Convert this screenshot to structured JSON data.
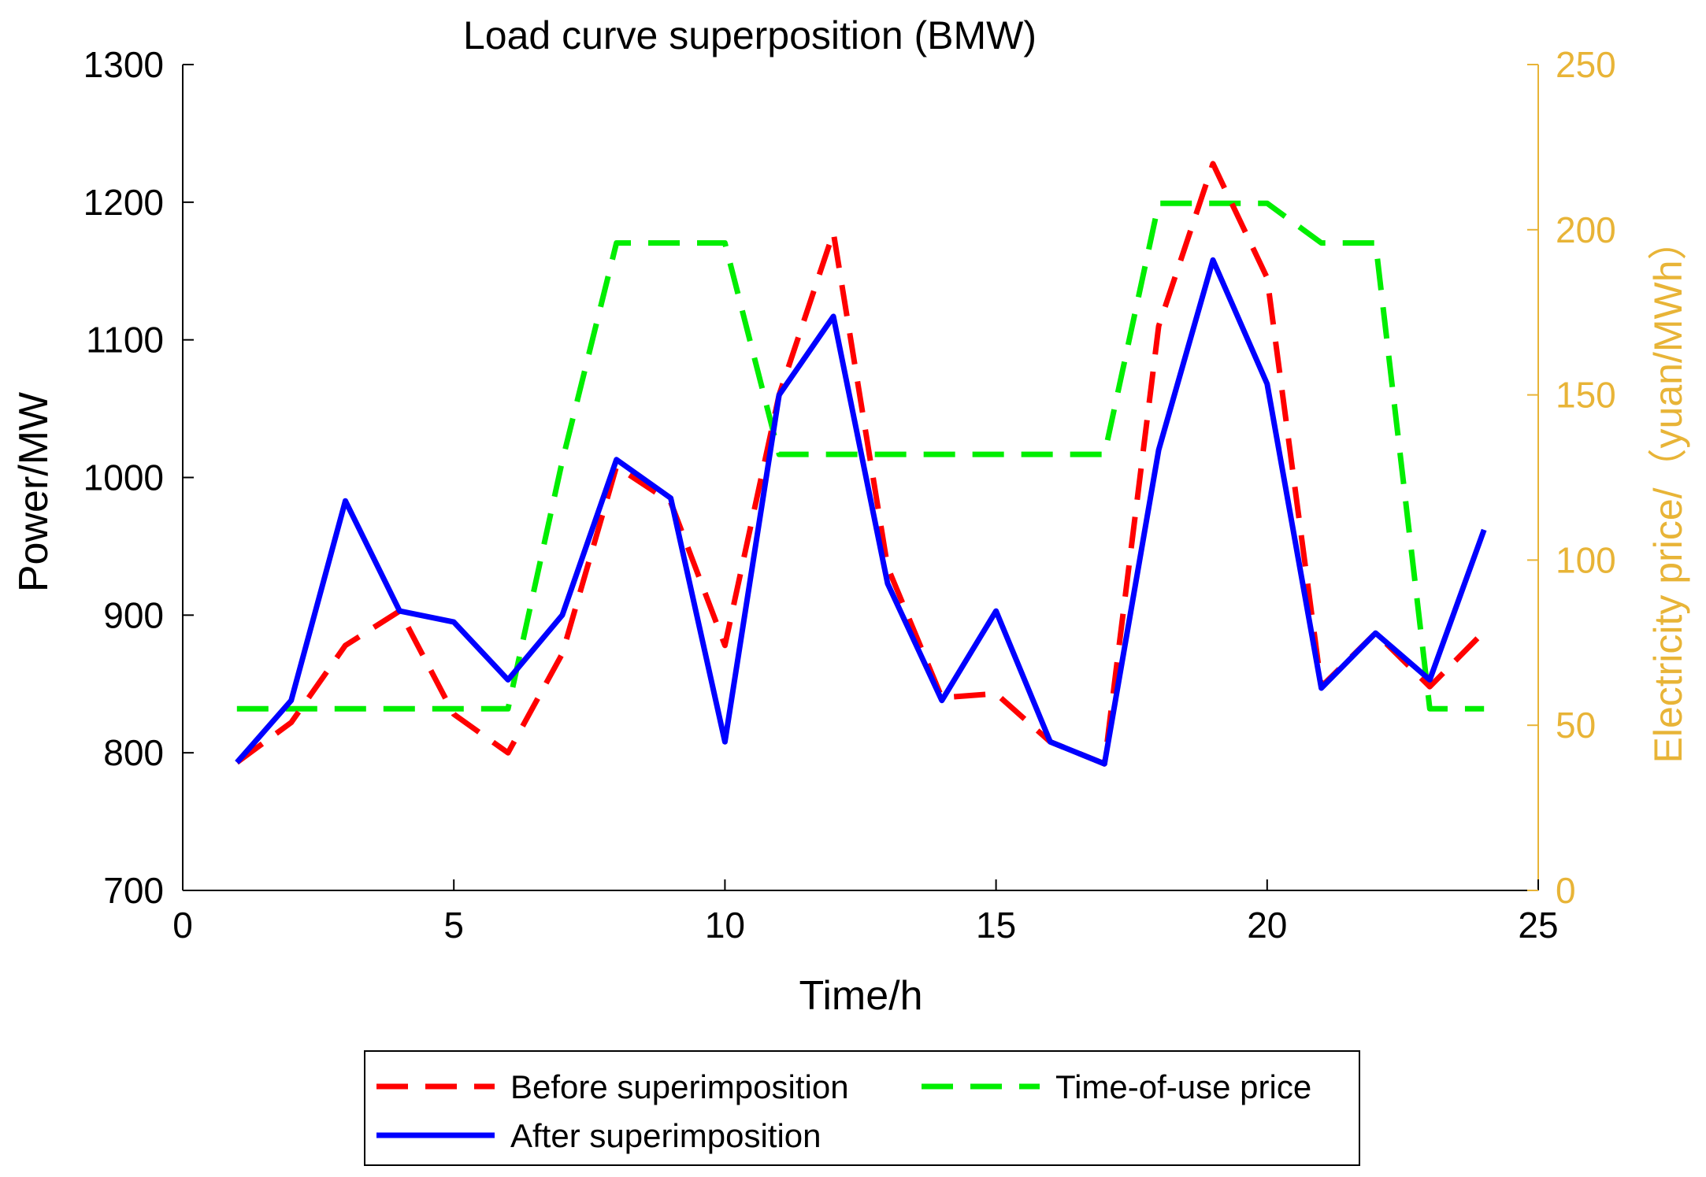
{
  "chart_data": {
    "type": "line",
    "title": "Load curve superposition (BMW)",
    "xlabel": "Time/h",
    "ylabel": "Power/MW",
    "y2label": "Electricity price/（yuan/MWh）",
    "xlim": [
      0,
      25
    ],
    "ylim": [
      700,
      1300
    ],
    "y2lim": [
      0,
      250
    ],
    "xticks": [
      0,
      5,
      10,
      15,
      20,
      25
    ],
    "yticks": [
      700,
      800,
      900,
      1000,
      1100,
      1200,
      1300
    ],
    "y2ticks": [
      0,
      50,
      100,
      150,
      200,
      250
    ],
    "grid": false,
    "legend_position": "bottom",
    "x": [
      1,
      2,
      3,
      4,
      5,
      6,
      7,
      8,
      9,
      10,
      11,
      12,
      13,
      14,
      15,
      16,
      17,
      18,
      19,
      20,
      21,
      22,
      23,
      24
    ],
    "series": [
      {
        "name": "Before superimposition",
        "axis": "left",
        "style": "dashed",
        "color": "#ff0000",
        "values": [
          793,
          822,
          878,
          903,
          828,
          800,
          872,
          1008,
          982,
          878,
          1060,
          1178,
          935,
          840,
          843,
          808,
          792,
          1110,
          1228,
          1145,
          848,
          887,
          848,
          888
        ]
      },
      {
        "name": "After superimposition",
        "axis": "left",
        "style": "solid",
        "color": "#0000ff",
        "values": [
          793,
          838,
          983,
          903,
          895,
          853,
          900,
          1013,
          985,
          808,
          1060,
          1117,
          923,
          838,
          903,
          808,
          792,
          1020,
          1158,
          1068,
          847,
          887,
          853,
          962
        ]
      },
      {
        "name": "Time-of-use price",
        "axis": "right",
        "style": "dashed",
        "color": "#00ee00",
        "values": [
          55,
          55,
          55,
          55,
          55,
          55,
          130,
          196,
          196,
          196,
          132,
          132,
          132,
          132,
          132,
          132,
          132,
          208,
          208,
          208,
          196,
          196,
          55,
          55
        ]
      }
    ]
  },
  "colors": {
    "axis": "#000000",
    "right_axis": "#e8b437"
  }
}
